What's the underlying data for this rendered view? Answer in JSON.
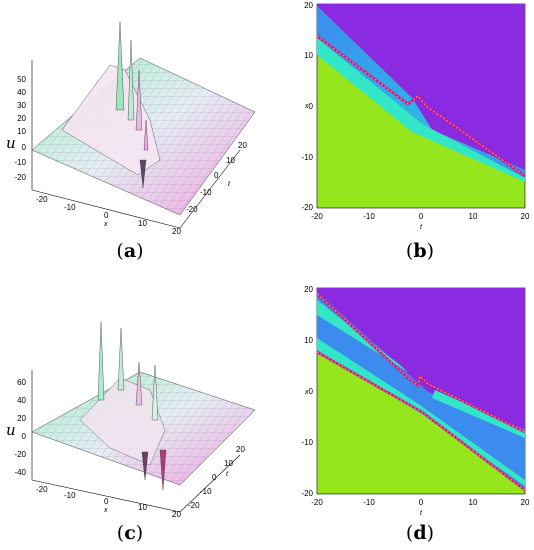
{
  "panels": [
    {
      "id": "a",
      "caption": "(a)",
      "caption_letter": "a",
      "type": "surface3d",
      "z_label": "u",
      "x_label": "x",
      "t_label": "t",
      "z_ticks": [
        "50",
        "40",
        "30",
        "20",
        "10",
        "0",
        "-10",
        "-20"
      ],
      "x_ticks": [
        "-20",
        "-10",
        "0",
        "10",
        "20"
      ],
      "t_ticks": [
        "20",
        "10",
        "0",
        "-10",
        "-20"
      ]
    },
    {
      "id": "b",
      "caption": "(b)",
      "caption_letter": "b",
      "type": "density",
      "x_label": "t",
      "y_label": "x",
      "x_ticks": [
        "-20",
        "-10",
        "0",
        "10",
        "20"
      ],
      "y_ticks": [
        "20",
        "10",
        "0",
        "-10",
        "-20"
      ]
    },
    {
      "id": "c",
      "caption": "(c)",
      "caption_letter": "c",
      "type": "surface3d",
      "z_label": "u",
      "x_label": "x",
      "t_label": "t",
      "z_ticks": [
        "60",
        "40",
        "20",
        "0",
        "-20",
        "-40"
      ],
      "x_ticks": [
        "-20",
        "-10",
        "0",
        "10",
        "20"
      ],
      "t_ticks": [
        "20",
        "10",
        "0",
        "-10",
        "-20"
      ]
    },
    {
      "id": "d",
      "caption": "(d)",
      "caption_letter": "d",
      "type": "density",
      "x_label": "t",
      "y_label": "x",
      "x_ticks": [
        "-20",
        "-10",
        "0",
        "10",
        "20"
      ],
      "y_ticks": [
        "20",
        "10",
        "0",
        "-10",
        "-20"
      ]
    }
  ],
  "colors": {
    "purple": "#8a2be2",
    "magenta": "#c8168c",
    "blue": "#3c8cf0",
    "cyan": "#32e6c8",
    "green": "#96e61e",
    "surface_pink": "#f0a0e0",
    "surface_green": "#a0f0c8"
  }
}
